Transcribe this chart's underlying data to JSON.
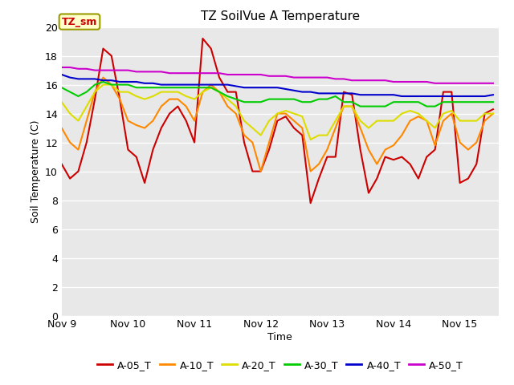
{
  "title": "TZ SoilVue A Temperature",
  "xlabel": "Time",
  "ylabel": "Soil Temperature (C)",
  "ylim": [
    0,
    20
  ],
  "yticks": [
    0,
    2,
    4,
    6,
    8,
    10,
    12,
    14,
    16,
    18,
    20
  ],
  "x_labels": [
    "Nov 9",
    "Nov 10",
    "Nov 11",
    "Nov 12",
    "Nov 13",
    "Nov 14",
    "Nov 15"
  ],
  "x_positions": [
    0,
    24,
    48,
    72,
    96,
    120,
    144
  ],
  "xlim": [
    0,
    158
  ],
  "annotation_label": "TZ_sm",
  "bg_color": "#e8e8e8",
  "fig_color": "#ffffff",
  "grid_color": "#ffffff",
  "series": [
    {
      "label": "A-05_T",
      "color": "#cc0000",
      "linewidth": 1.5,
      "data_x": [
        0,
        3,
        6,
        9,
        12,
        15,
        18,
        21,
        24,
        27,
        30,
        33,
        36,
        39,
        42,
        45,
        48,
        51,
        54,
        57,
        60,
        63,
        66,
        69,
        72,
        75,
        78,
        81,
        84,
        87,
        90,
        93,
        96,
        99,
        102,
        105,
        108,
        111,
        114,
        117,
        120,
        123,
        126,
        129,
        132,
        135,
        138,
        141,
        144,
        147,
        150,
        153,
        156
      ],
      "data_y": [
        10.5,
        9.5,
        10.0,
        12.0,
        15.0,
        18.5,
        18.0,
        15.0,
        11.5,
        11.0,
        9.2,
        11.5,
        13.0,
        14.0,
        14.5,
        13.5,
        12.0,
        19.2,
        18.5,
        16.5,
        15.5,
        15.5,
        12.0,
        10.0,
        10.0,
        11.5,
        13.5,
        13.8,
        13.0,
        12.5,
        7.8,
        9.5,
        11.0,
        11.0,
        15.5,
        15.3,
        11.5,
        8.5,
        9.5,
        11.0,
        10.8,
        11.0,
        10.5,
        9.5,
        11.0,
        11.5,
        15.5,
        15.5,
        9.2,
        9.5,
        10.5,
        14.0,
        14.3
      ]
    },
    {
      "label": "A-10_T",
      "color": "#ff8800",
      "linewidth": 1.5,
      "data_x": [
        0,
        3,
        6,
        9,
        12,
        15,
        18,
        21,
        24,
        27,
        30,
        33,
        36,
        39,
        42,
        45,
        48,
        51,
        54,
        57,
        60,
        63,
        66,
        69,
        72,
        75,
        78,
        81,
        84,
        87,
        90,
        93,
        96,
        99,
        102,
        105,
        108,
        111,
        114,
        117,
        120,
        123,
        126,
        129,
        132,
        135,
        138,
        141,
        144,
        147,
        150,
        153,
        156
      ],
      "data_y": [
        13.0,
        12.0,
        11.5,
        13.5,
        15.5,
        16.5,
        16.0,
        15.0,
        13.5,
        13.2,
        13.0,
        13.5,
        14.5,
        15.0,
        15.0,
        14.5,
        13.5,
        15.5,
        16.0,
        15.5,
        14.5,
        14.0,
        12.5,
        12.0,
        10.0,
        12.0,
        14.0,
        14.0,
        13.5,
        13.0,
        10.0,
        10.5,
        11.5,
        13.0,
        14.5,
        14.5,
        13.0,
        11.5,
        10.5,
        11.5,
        11.8,
        12.5,
        13.5,
        13.8,
        13.5,
        11.8,
        13.5,
        14.0,
        12.0,
        11.5,
        12.0,
        13.5,
        14.0
      ]
    },
    {
      "label": "A-20_T",
      "color": "#dddd00",
      "linewidth": 1.5,
      "data_x": [
        0,
        3,
        6,
        9,
        12,
        15,
        18,
        21,
        24,
        27,
        30,
        33,
        36,
        39,
        42,
        45,
        48,
        51,
        54,
        57,
        60,
        63,
        66,
        69,
        72,
        75,
        78,
        81,
        84,
        87,
        90,
        93,
        96,
        99,
        102,
        105,
        108,
        111,
        114,
        117,
        120,
        123,
        126,
        129,
        132,
        135,
        138,
        141,
        144,
        147,
        150,
        153,
        156
      ],
      "data_y": [
        14.8,
        14.0,
        13.5,
        14.5,
        15.5,
        16.0,
        16.0,
        15.5,
        15.5,
        15.2,
        15.0,
        15.2,
        15.5,
        15.5,
        15.5,
        15.2,
        15.0,
        15.5,
        15.8,
        15.5,
        15.0,
        14.5,
        13.5,
        13.0,
        12.5,
        13.5,
        14.0,
        14.2,
        14.0,
        13.8,
        12.2,
        12.5,
        12.5,
        13.5,
        14.5,
        14.5,
        13.5,
        13.0,
        13.5,
        13.5,
        13.5,
        14.0,
        14.2,
        14.0,
        13.5,
        13.0,
        14.0,
        14.2,
        13.5,
        13.5,
        13.5,
        14.0,
        14.0
      ]
    },
    {
      "label": "A-30_T",
      "color": "#00cc00",
      "linewidth": 1.5,
      "data_x": [
        0,
        3,
        6,
        9,
        12,
        15,
        18,
        21,
        24,
        27,
        30,
        33,
        36,
        39,
        42,
        45,
        48,
        51,
        54,
        57,
        60,
        63,
        66,
        69,
        72,
        75,
        78,
        81,
        84,
        87,
        90,
        93,
        96,
        99,
        102,
        105,
        108,
        111,
        114,
        117,
        120,
        123,
        126,
        129,
        132,
        135,
        138,
        141,
        144,
        147,
        150,
        153,
        156
      ],
      "data_y": [
        15.8,
        15.5,
        15.2,
        15.5,
        16.0,
        16.2,
        16.0,
        16.0,
        16.0,
        15.8,
        15.8,
        15.8,
        15.8,
        15.8,
        15.8,
        15.8,
        15.8,
        15.8,
        15.8,
        15.5,
        15.2,
        15.0,
        14.8,
        14.8,
        14.8,
        15.0,
        15.0,
        15.0,
        15.0,
        14.8,
        14.8,
        15.0,
        15.0,
        15.2,
        14.8,
        14.8,
        14.5,
        14.5,
        14.5,
        14.5,
        14.8,
        14.8,
        14.8,
        14.8,
        14.5,
        14.5,
        14.8,
        14.8,
        14.8,
        14.8,
        14.8,
        14.8,
        14.8
      ]
    },
    {
      "label": "A-40_T",
      "color": "#0000cc",
      "linewidth": 1.5,
      "data_x": [
        0,
        3,
        6,
        9,
        12,
        15,
        18,
        21,
        24,
        27,
        30,
        33,
        36,
        39,
        42,
        45,
        48,
        51,
        54,
        57,
        60,
        63,
        66,
        69,
        72,
        75,
        78,
        81,
        84,
        87,
        90,
        93,
        96,
        99,
        102,
        105,
        108,
        111,
        114,
        117,
        120,
        123,
        126,
        129,
        132,
        135,
        138,
        141,
        144,
        147,
        150,
        153,
        156
      ],
      "data_y": [
        16.7,
        16.5,
        16.4,
        16.4,
        16.4,
        16.3,
        16.3,
        16.2,
        16.2,
        16.2,
        16.1,
        16.1,
        16.0,
        16.0,
        16.0,
        16.0,
        16.0,
        16.0,
        16.0,
        16.0,
        16.0,
        15.9,
        15.8,
        15.8,
        15.8,
        15.8,
        15.8,
        15.7,
        15.6,
        15.5,
        15.5,
        15.4,
        15.4,
        15.4,
        15.4,
        15.4,
        15.3,
        15.3,
        15.3,
        15.3,
        15.3,
        15.2,
        15.2,
        15.2,
        15.2,
        15.2,
        15.2,
        15.2,
        15.2,
        15.2,
        15.2,
        15.2,
        15.3
      ]
    },
    {
      "label": "A-50_T",
      "color": "#cc00cc",
      "linewidth": 1.5,
      "data_x": [
        0,
        3,
        6,
        9,
        12,
        15,
        18,
        21,
        24,
        27,
        30,
        33,
        36,
        39,
        42,
        45,
        48,
        51,
        54,
        57,
        60,
        63,
        66,
        69,
        72,
        75,
        78,
        81,
        84,
        87,
        90,
        93,
        96,
        99,
        102,
        105,
        108,
        111,
        114,
        117,
        120,
        123,
        126,
        129,
        132,
        135,
        138,
        141,
        144,
        147,
        150,
        153,
        156
      ],
      "data_y": [
        17.2,
        17.2,
        17.1,
        17.1,
        17.0,
        17.0,
        17.0,
        17.0,
        17.0,
        16.9,
        16.9,
        16.9,
        16.9,
        16.8,
        16.8,
        16.8,
        16.8,
        16.8,
        16.8,
        16.8,
        16.7,
        16.7,
        16.7,
        16.7,
        16.7,
        16.6,
        16.6,
        16.6,
        16.5,
        16.5,
        16.5,
        16.5,
        16.5,
        16.4,
        16.4,
        16.3,
        16.3,
        16.3,
        16.3,
        16.3,
        16.2,
        16.2,
        16.2,
        16.2,
        16.2,
        16.1,
        16.1,
        16.1,
        16.1,
        16.1,
        16.1,
        16.1,
        16.1
      ]
    }
  ]
}
